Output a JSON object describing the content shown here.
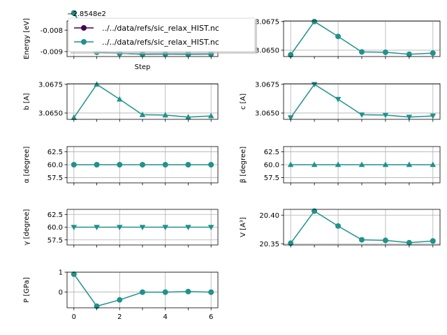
{
  "figure": {
    "x_ticks": [
      "0",
      "2",
      "4",
      "6"
    ]
  },
  "legend": {
    "entries": [
      {
        "label": "../../data/refs/sic_relax_HIST.nc",
        "color": "#440154"
      },
      {
        "label": "../../data/refs/sic_relax_HIST.nc",
        "color": "#21918c"
      }
    ]
  },
  "chart_data": [
    {
      "id": "energy",
      "type": "line",
      "title": "",
      "xlabel": "Step",
      "ylabel": "Energy [eV]",
      "offset_text": "−2.8548e2",
      "x": [
        0,
        1,
        2,
        3,
        4,
        5,
        6
      ],
      "series": [
        {
          "name": "../../data/refs/sic_relax_HIST.nc",
          "values": [
            -0.0072,
            -0.00903,
            -0.00908,
            -0.00912,
            -0.00911,
            -0.00912,
            -0.00911
          ],
          "color": "#440154",
          "marker": "circle"
        },
        {
          "name": "../../data/refs/sic_relax_HIST.nc",
          "values": [
            -0.0072,
            -0.00903,
            -0.00908,
            -0.00912,
            -0.00911,
            -0.00912,
            -0.00911
          ],
          "color": "#21918c",
          "marker": "circle"
        }
      ],
      "ylim": [
        -0.00923,
        -0.00757
      ],
      "yticks": [
        "-0.008",
        "-0.009"
      ],
      "ytick_values": [
        -0.008,
        -0.009
      ],
      "grid": true
    },
    {
      "id": "a",
      "type": "line",
      "xlabel": "",
      "ylabel": "a [A]",
      "x": [
        0,
        1,
        2,
        3,
        4,
        5,
        6
      ],
      "series": [
        {
          "values": [
            3.0646,
            3.0675,
            3.0662,
            3.06485,
            3.06482,
            3.06465,
            3.06475
          ],
          "color": "#21918c",
          "marker": "circle"
        }
      ],
      "ylim": [
        3.06445,
        3.06755
      ],
      "yticks": [
        "3.0650",
        "3.0675"
      ],
      "ytick_values": [
        3.065,
        3.0675
      ],
      "grid": true
    },
    {
      "id": "b",
      "type": "line",
      "xlabel": "",
      "ylabel": "b [A]",
      "x": [
        0,
        1,
        2,
        3,
        4,
        5,
        6
      ],
      "series": [
        {
          "values": [
            3.0646,
            3.0675,
            3.0662,
            3.06485,
            3.06482,
            3.06465,
            3.06475
          ],
          "color": "#21918c",
          "marker": "triangle-up"
        }
      ],
      "ylim": [
        3.06445,
        3.06755
      ],
      "yticks": [
        "3.0650",
        "3.0675"
      ],
      "ytick_values": [
        3.065,
        3.0675
      ],
      "grid": true
    },
    {
      "id": "c",
      "type": "line",
      "xlabel": "",
      "ylabel": "c [A]",
      "x": [
        0,
        1,
        2,
        3,
        4,
        5,
        6
      ],
      "series": [
        {
          "values": [
            3.0646,
            3.0675,
            3.0662,
            3.06485,
            3.06482,
            3.06465,
            3.06475
          ],
          "color": "#21918c",
          "marker": "triangle-down"
        }
      ],
      "ylim": [
        3.06445,
        3.06755
      ],
      "yticks": [
        "3.0650",
        "3.0675"
      ],
      "ytick_values": [
        3.065,
        3.0675
      ],
      "grid": true
    },
    {
      "id": "alpha",
      "type": "line",
      "xlabel": "",
      "ylabel": "α [degree]",
      "x": [
        0,
        1,
        2,
        3,
        4,
        5,
        6
      ],
      "series": [
        {
          "values": [
            60,
            60,
            60,
            60,
            60,
            60,
            60
          ],
          "color": "#21918c",
          "marker": "circle"
        }
      ],
      "ylim": [
        56.5,
        63.5
      ],
      "yticks": [
        "57.5",
        "60.0",
        "62.5"
      ],
      "ytick_values": [
        57.5,
        60,
        62.5
      ],
      "grid": true
    },
    {
      "id": "beta",
      "type": "line",
      "xlabel": "",
      "ylabel": "β [degree]",
      "x": [
        0,
        1,
        2,
        3,
        4,
        5,
        6
      ],
      "series": [
        {
          "values": [
            60,
            60,
            60,
            60,
            60,
            60,
            60
          ],
          "color": "#21918c",
          "marker": "triangle-up"
        }
      ],
      "ylim": [
        56.5,
        63.5
      ],
      "yticks": [
        "57.5",
        "60.0",
        "62.5"
      ],
      "ytick_values": [
        57.5,
        60,
        62.5
      ],
      "grid": true
    },
    {
      "id": "gamma",
      "type": "line",
      "xlabel": "",
      "ylabel": "γ [degree]",
      "x": [
        0,
        1,
        2,
        3,
        4,
        5,
        6
      ],
      "series": [
        {
          "values": [
            60,
            60,
            60,
            60,
            60,
            60,
            60
          ],
          "color": "#21918c",
          "marker": "triangle-down"
        }
      ],
      "ylim": [
        56.5,
        63.5
      ],
      "yticks": [
        "57.5",
        "60.0",
        "62.5"
      ],
      "ytick_values": [
        57.5,
        60,
        62.5
      ],
      "grid": true
    },
    {
      "id": "volume",
      "type": "line",
      "xlabel": "",
      "ylabel": "V [A³]",
      "x": [
        0,
        1,
        2,
        3,
        4,
        5,
        6
      ],
      "series": [
        {
          "values": [
            20.351,
            20.407,
            20.381,
            20.357,
            20.356,
            20.352,
            20.355
          ],
          "color": "#21918c",
          "marker": "circle"
        }
      ],
      "ylim": [
        20.348,
        20.41
      ],
      "yticks": [
        "20.35",
        "20.40"
      ],
      "ytick_values": [
        20.35,
        20.4
      ],
      "grid": true
    },
    {
      "id": "pressure",
      "type": "line",
      "xlabel": "",
      "ylabel": "P [GPa]",
      "x": [
        0,
        1,
        2,
        3,
        4,
        5,
        6
      ],
      "series": [
        {
          "values": [
            0.9,
            -0.72,
            -0.4,
            -0.01,
            -0.01,
            0.02,
            -0.01
          ],
          "color": "#21918c",
          "marker": "circle"
        }
      ],
      "ylim": [
        -0.8,
        1.0
      ],
      "yticks": [
        "1",
        "0"
      ],
      "ytick_values": [
        1,
        0
      ],
      "grid": true
    }
  ]
}
